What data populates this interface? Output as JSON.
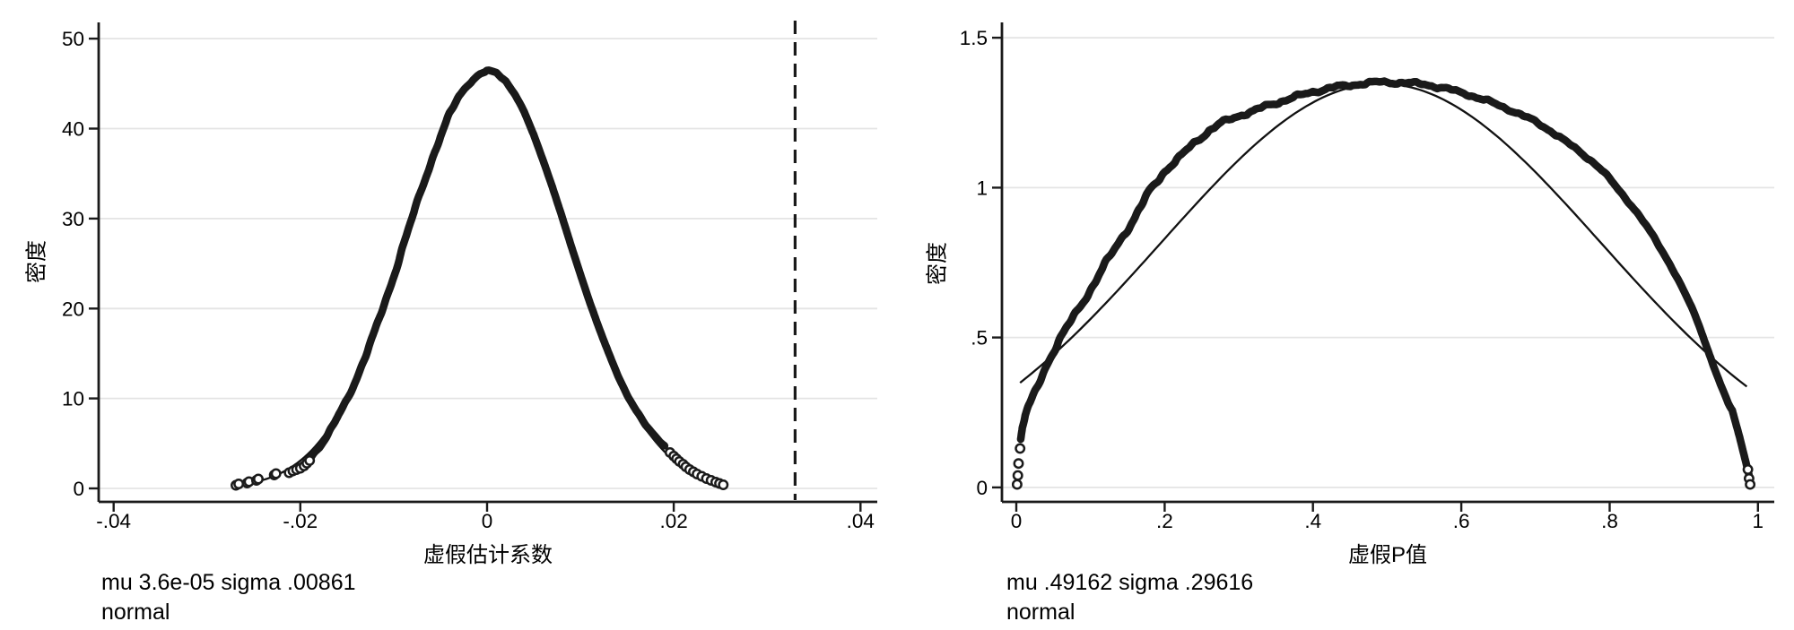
{
  "figure": {
    "background": "#ffffff"
  },
  "colors": {
    "curve": "#1a1a1a",
    "normal_line": "#111111",
    "grid": "#e4e4e4",
    "axis": "#1a1a1a",
    "text": "#000000",
    "marker_fill": "#ffffff"
  },
  "chart_data": [
    {
      "type": "line",
      "subtype": "kernel-density-with-normal-overlay",
      "title": "",
      "xlabel": "虚假估计系数",
      "ylabel": "密度",
      "xlim": [
        -0.0416,
        0.0418
      ],
      "ylim": [
        -1.49,
        51.8
      ],
      "grid": "horizontal",
      "legend": "none",
      "xticks": {
        "values": [
          -0.04,
          -0.02,
          0,
          0.02,
          0.04
        ],
        "labels": [
          "-.04",
          "-.02",
          "0",
          ".02",
          ".04"
        ]
      },
      "yticks": {
        "values": [
          0,
          10,
          20,
          30,
          40,
          50
        ],
        "labels": [
          "0",
          "10",
          "20",
          "30",
          "40",
          "50"
        ]
      },
      "vline": {
        "x": 0.033,
        "style": "dashed"
      },
      "kernel_curve": [
        [
          -0.019,
          3.4
        ],
        [
          -0.018,
          4.6
        ],
        [
          -0.017,
          6.0
        ],
        [
          -0.016,
          7.9
        ],
        [
          -0.015,
          9.9
        ],
        [
          -0.014,
          12.2
        ],
        [
          -0.013,
          14.7
        ],
        [
          -0.012,
          17.5
        ],
        [
          -0.011,
          20.5
        ],
        [
          -0.01,
          23.6
        ],
        [
          -0.009,
          26.9
        ],
        [
          -0.008,
          30.1
        ],
        [
          -0.007,
          33.3
        ],
        [
          -0.006,
          36.3
        ],
        [
          -0.005,
          39.1
        ],
        [
          -0.004,
          41.6
        ],
        [
          -0.003,
          43.6
        ],
        [
          -0.002,
          45.0
        ],
        [
          -0.001,
          45.9
        ],
        [
          0.0,
          46.4
        ],
        [
          0.001,
          46.2
        ],
        [
          0.002,
          45.3
        ],
        [
          0.003,
          43.8
        ],
        [
          0.004,
          41.8
        ],
        [
          0.005,
          39.3
        ],
        [
          0.006,
          36.5
        ],
        [
          0.007,
          33.5
        ],
        [
          0.008,
          30.3
        ],
        [
          0.009,
          27.0
        ],
        [
          0.01,
          23.8
        ],
        [
          0.011,
          20.7
        ],
        [
          0.012,
          17.8
        ],
        [
          0.013,
          15.1
        ],
        [
          0.014,
          12.6
        ],
        [
          0.015,
          10.4
        ],
        [
          0.016,
          8.6
        ],
        [
          0.017,
          7.0
        ],
        [
          0.018,
          5.8
        ],
        [
          0.019,
          4.8
        ]
      ],
      "tail_points": [
        [
          -0.0269,
          0.35
        ],
        [
          -0.0266,
          0.5
        ],
        [
          -0.0257,
          0.6
        ],
        [
          -0.0255,
          0.75
        ],
        [
          -0.0247,
          0.9
        ],
        [
          -0.0245,
          1.05
        ],
        [
          -0.0228,
          1.5
        ],
        [
          -0.0226,
          1.65
        ],
        [
          -0.0212,
          1.75
        ],
        [
          -0.0208,
          1.95
        ],
        [
          -0.0204,
          2.1
        ],
        [
          -0.02,
          2.25
        ],
        [
          -0.0196,
          2.5
        ],
        [
          -0.0193,
          2.8
        ],
        [
          -0.019,
          3.1
        ],
        [
          0.0196,
          4.0
        ],
        [
          0.02,
          3.6
        ],
        [
          0.0203,
          3.3
        ],
        [
          0.0206,
          3.0
        ],
        [
          0.021,
          2.7
        ],
        [
          0.0213,
          2.4
        ],
        [
          0.0217,
          2.1
        ],
        [
          0.0221,
          1.85
        ],
        [
          0.0225,
          1.6
        ],
        [
          0.023,
          1.35
        ],
        [
          0.0235,
          1.1
        ],
        [
          0.024,
          0.9
        ],
        [
          0.0245,
          0.7
        ],
        [
          0.0249,
          0.55
        ],
        [
          0.0253,
          0.4
        ]
      ],
      "normal_curve": {
        "mu": 3.6e-05,
        "sigma": 0.00861,
        "range": [
          -0.0268,
          0.0253
        ]
      },
      "annotations": [
        "mu 3.6e-05 sigma .00861",
        "normal"
      ]
    },
    {
      "type": "line",
      "subtype": "kernel-density-with-normal-overlay",
      "title": "",
      "xlabel": "虚假P值",
      "ylabel": "密度",
      "xlim": [
        -0.0194,
        1.022
      ],
      "ylim": [
        -0.048,
        1.551
      ],
      "grid": "horizontal",
      "legend": "none",
      "xticks": {
        "values": [
          0,
          0.2,
          0.4,
          0.6,
          0.8,
          1
        ],
        "labels": [
          "0",
          ".2",
          ".4",
          ".6",
          ".8",
          "1"
        ]
      },
      "yticks": {
        "values": [
          0,
          0.5,
          1,
          1.5
        ],
        "labels": [
          "0",
          ".5",
          "1",
          "1.5"
        ]
      },
      "vline": null,
      "kernel_curve": [
        [
          0.006,
          0.16
        ],
        [
          0.008,
          0.2
        ],
        [
          0.012,
          0.24
        ],
        [
          0.016,
          0.265
        ],
        [
          0.02,
          0.285
        ],
        [
          0.03,
          0.345
        ],
        [
          0.04,
          0.405
        ],
        [
          0.05,
          0.455
        ],
        [
          0.06,
          0.5
        ],
        [
          0.07,
          0.54
        ],
        [
          0.08,
          0.58
        ],
        [
          0.1,
          0.66
        ],
        [
          0.12,
          0.745
        ],
        [
          0.14,
          0.825
        ],
        [
          0.16,
          0.9
        ],
        [
          0.18,
          0.99
        ],
        [
          0.2,
          1.055
        ],
        [
          0.22,
          1.1
        ],
        [
          0.24,
          1.15
        ],
        [
          0.26,
          1.19
        ],
        [
          0.28,
          1.22
        ],
        [
          0.3,
          1.24
        ],
        [
          0.32,
          1.255
        ],
        [
          0.34,
          1.275
        ],
        [
          0.36,
          1.29
        ],
        [
          0.38,
          1.305
        ],
        [
          0.4,
          1.32
        ],
        [
          0.43,
          1.335
        ],
        [
          0.46,
          1.345
        ],
        [
          0.49,
          1.352
        ],
        [
          0.52,
          1.35
        ],
        [
          0.55,
          1.345
        ],
        [
          0.58,
          1.33
        ],
        [
          0.61,
          1.31
        ],
        [
          0.64,
          1.285
        ],
        [
          0.67,
          1.255
        ],
        [
          0.7,
          1.22
        ],
        [
          0.72,
          1.19
        ],
        [
          0.74,
          1.155
        ],
        [
          0.76,
          1.12
        ],
        [
          0.78,
          1.08
        ],
        [
          0.8,
          1.03
        ],
        [
          0.82,
          0.97
        ],
        [
          0.84,
          0.905
        ],
        [
          0.86,
          0.835
        ],
        [
          0.88,
          0.75
        ],
        [
          0.9,
          0.655
        ],
        [
          0.91,
          0.605
        ],
        [
          0.92,
          0.545
        ],
        [
          0.93,
          0.475
        ],
        [
          0.94,
          0.405
        ],
        [
          0.95,
          0.34
        ],
        [
          0.96,
          0.28
        ],
        [
          0.965,
          0.26
        ],
        [
          0.97,
          0.215
        ],
        [
          0.975,
          0.17
        ],
        [
          0.98,
          0.12
        ],
        [
          0.985,
          0.07
        ],
        [
          0.988,
          0.04
        ]
      ],
      "tail_points": [
        [
          0.001,
          0.01
        ],
        [
          0.002,
          0.04
        ],
        [
          0.003,
          0.08
        ],
        [
          0.005,
          0.13
        ],
        [
          0.9865,
          0.06
        ],
        [
          0.988,
          0.03
        ],
        [
          0.9895,
          0.01
        ]
      ],
      "normal_curve": {
        "mu": 0.49162,
        "sigma": 0.29616,
        "range": [
          0.005,
          0.985
        ]
      },
      "annotations": [
        "mu .49162 sigma .29616",
        "normal"
      ]
    }
  ]
}
